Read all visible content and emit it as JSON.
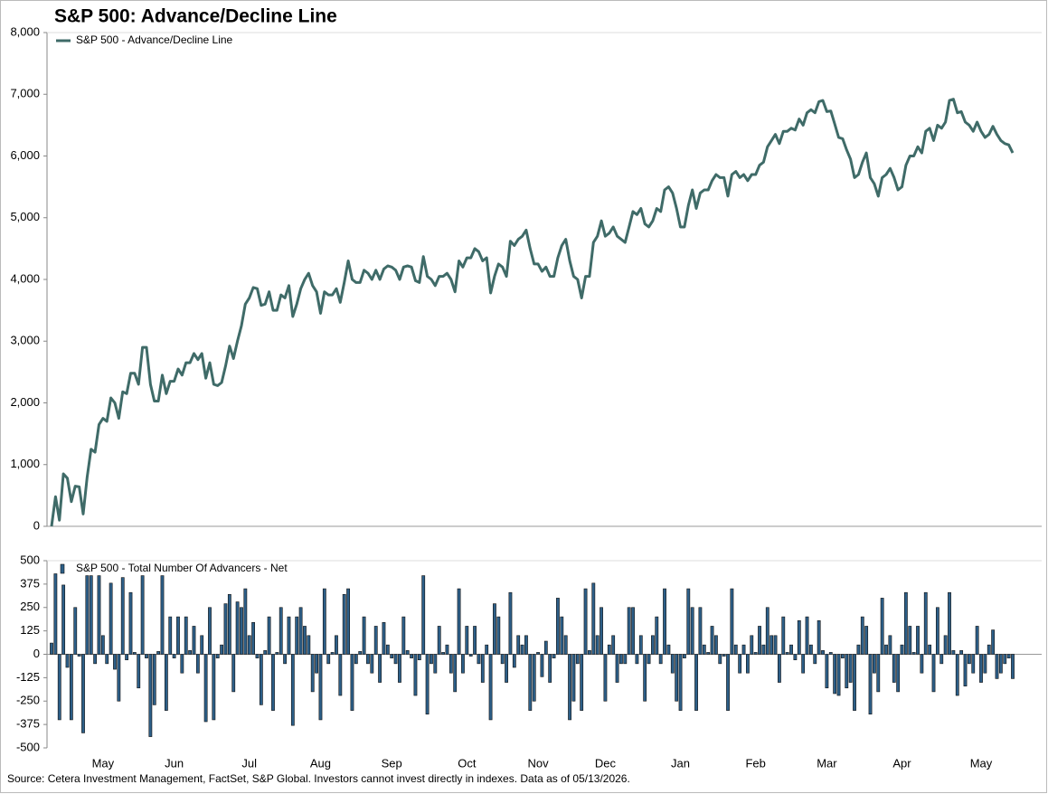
{
  "title": "S&P 500: Advance/Decline Line",
  "source": "Source: Cetera Investment Management, FactSet, S&P Global. Investors cannot invest directly in indexes. Data as of 05/13/2026.",
  "chart_data": [
    {
      "type": "line",
      "series": [
        {
          "name": "S&P 500 - Advance/Decline Line",
          "color": "#3f6b68",
          "values": [
            0,
            480,
            100,
            850,
            780,
            400,
            650,
            640,
            200,
            800,
            1250,
            1200,
            1650,
            1750,
            1700,
            2080,
            2000,
            1750,
            2180,
            2150,
            2480,
            2480,
            2300,
            2900,
            2900,
            2300,
            2030,
            2030,
            2450,
            2150,
            2350,
            2350,
            2550,
            2450,
            2650,
            2650,
            2800,
            2700,
            2800,
            2400,
            2650,
            2300,
            2280,
            2330,
            2600,
            2920,
            2720,
            3000,
            3250,
            3600,
            3700,
            3870,
            3850,
            3580,
            3600,
            3800,
            3500,
            3500,
            3750,
            3700,
            3900,
            3400,
            3600,
            3850,
            4000,
            4100,
            3900,
            3800,
            3450,
            3800,
            3750,
            3750,
            3850,
            3630,
            3950,
            4300,
            4000,
            3950,
            3950,
            4150,
            4100,
            4000,
            4150,
            4000,
            4170,
            4220,
            4200,
            4150,
            4000,
            4200,
            4220,
            4200,
            3980,
            3950,
            4370,
            4050,
            4000,
            3900,
            4050,
            4050,
            4100,
            4000,
            3800,
            4300,
            4200,
            4350,
            4350,
            4500,
            4450,
            4300,
            4350,
            3780,
            4050,
            4250,
            4200,
            4050,
            4620,
            4550,
            4650,
            4700,
            4800,
            4500,
            4250,
            4250,
            4130,
            4200,
            4050,
            4050,
            4350,
            4550,
            4650,
            4300,
            4050,
            4000,
            3700,
            4050,
            4050,
            4600,
            4700,
            4950,
            4700,
            4750,
            4850,
            4700,
            4650,
            4600,
            4850,
            5100,
            5050,
            5150,
            4900,
            4850,
            4950,
            5150,
            5100,
            5450,
            5500,
            5400,
            5150,
            4850,
            4850,
            5200,
            5450,
            5150,
            5400,
            5450,
            5450,
            5600,
            5700,
            5650,
            5650,
            5350,
            5700,
            5750,
            5650,
            5700,
            5600,
            5700,
            5700,
            5850,
            5900,
            6150,
            6250,
            6350,
            6200,
            6400,
            6400,
            6450,
            6420,
            6600,
            6500,
            6700,
            6750,
            6700,
            6880,
            6900,
            6720,
            6730,
            6520,
            6300,
            6280,
            6100,
            5950,
            5650,
            5700,
            5900,
            6050,
            5650,
            5550,
            5350,
            5650,
            5700,
            5800,
            5650,
            5450,
            5500,
            5850,
            6000,
            6000,
            6150,
            6050,
            6400,
            6450,
            6250,
            6500,
            6450,
            6550,
            6900,
            6920,
            6700,
            6720,
            6550,
            6500,
            6400,
            6550,
            6400,
            6300,
            6350,
            6480,
            6350,
            6250,
            6200,
            6180,
            6050
          ]
        }
      ],
      "ylim": [
        0,
        8000
      ],
      "yticks": [
        0,
        {
          "value": 1000,
          "label": "1,000"
        },
        {
          "value": 2000,
          "label": "2,000"
        },
        {
          "value": 3000,
          "label": "3,000"
        },
        {
          "value": 4000,
          "label": "4,000"
        },
        {
          "value": 5000,
          "label": "5,000"
        },
        {
          "value": 6000,
          "label": "6,000"
        },
        {
          "value": 7000,
          "label": "7,000"
        },
        {
          "value": 8000,
          "label": "8,000"
        }
      ]
    },
    {
      "type": "bar",
      "categories": [
        null,
        null,
        null,
        null,
        null,
        null,
        null,
        null,
        null,
        null,
        null,
        null,
        null,
        "May",
        null,
        null,
        null,
        null,
        null,
        null,
        null,
        null,
        null,
        null,
        null,
        null,
        null,
        null,
        null,
        null,
        null,
        "Jun",
        null,
        null,
        null,
        null,
        null,
        null,
        null,
        null,
        null,
        null,
        null,
        null,
        null,
        null,
        null,
        null,
        null,
        null,
        "Jul",
        null,
        null,
        null,
        null,
        null,
        null,
        null,
        null,
        null,
        null,
        null,
        null,
        null,
        null,
        null,
        null,
        null,
        "Aug",
        null,
        null,
        null,
        null,
        null,
        null,
        null,
        null,
        null,
        null,
        null,
        null,
        null,
        null,
        null,
        null,
        null,
        "Sep",
        null,
        null,
        null,
        null,
        null,
        null,
        null,
        null,
        null,
        null,
        null,
        null,
        null,
        null,
        null,
        null,
        null,
        null,
        "Oct",
        null,
        null,
        null,
        null,
        null,
        null,
        null,
        null,
        null,
        null,
        null,
        null,
        null,
        null,
        null,
        null,
        null,
        "Nov",
        null,
        null,
        null,
        null,
        null,
        null,
        null,
        null,
        null,
        null,
        null,
        null,
        null,
        null,
        null,
        null,
        "Dec",
        null,
        null,
        null,
        null,
        null,
        null,
        null,
        null,
        null,
        null,
        null,
        null,
        null,
        null,
        null,
        null,
        null,
        null,
        "Jan",
        null,
        null,
        null,
        null,
        null,
        null,
        null,
        null,
        null,
        null,
        null,
        null,
        null,
        null,
        null,
        null,
        null,
        null,
        "Feb",
        null,
        null,
        null,
        null,
        null,
        null,
        null,
        null,
        null,
        null,
        null,
        null,
        null,
        null,
        null,
        null,
        null,
        "Mar",
        null,
        null,
        null,
        null,
        null,
        null,
        null,
        null,
        null,
        null,
        null,
        null,
        null,
        null,
        null,
        null,
        null,
        null,
        "Apr",
        null,
        null,
        null,
        null,
        null,
        null,
        null,
        null,
        null,
        null,
        null,
        null,
        null,
        null,
        null,
        null,
        null,
        null,
        null,
        "May",
        null,
        null,
        null,
        null,
        null,
        null,
        null,
        null
      ],
      "series": [
        {
          "name": "S&P 500 - Total Number Of Advancers - Net",
          "color": "#2d5f88",
          "values": [
            60,
            430,
            -350,
            370,
            -70,
            -350,
            250,
            -10,
            -420,
            420,
            420,
            -50,
            420,
            100,
            -50,
            380,
            -80,
            -250,
            410,
            -30,
            330,
            10,
            -180,
            420,
            -20,
            -440,
            -270,
            15,
            420,
            -300,
            200,
            -20,
            200,
            -100,
            200,
            20,
            150,
            -100,
            100,
            -360,
            250,
            -350,
            -20,
            50,
            270,
            320,
            -200,
            280,
            250,
            350,
            100,
            170,
            -20,
            -270,
            20,
            200,
            -300,
            10,
            250,
            -50,
            200,
            -380,
            200,
            250,
            150,
            100,
            -200,
            -100,
            -350,
            350,
            -50,
            10,
            100,
            -220,
            320,
            350,
            -300,
            -50,
            15,
            200,
            -50,
            -100,
            150,
            -150,
            170,
            50,
            -20,
            -50,
            -150,
            200,
            20,
            -20,
            -220,
            -30,
            420,
            -320,
            -50,
            -100,
            150,
            10,
            50,
            -100,
            -200,
            350,
            -100,
            150,
            -10,
            150,
            -50,
            -150,
            50,
            -350,
            270,
            200,
            -50,
            -150,
            330,
            -70,
            100,
            50,
            100,
            -300,
            -250,
            10,
            -120,
            70,
            -150,
            -20,
            300,
            200,
            100,
            -350,
            -250,
            -50,
            -300,
            350,
            20,
            380,
            100,
            250,
            -250,
            50,
            100,
            -150,
            -50,
            -50,
            250,
            250,
            -50,
            100,
            -250,
            -50,
            100,
            200,
            -50,
            350,
            50,
            -100,
            -250,
            -300,
            -20,
            350,
            250,
            -300,
            250,
            50,
            10,
            150,
            100,
            -50,
            -10,
            -300,
            350,
            50,
            -100,
            50,
            -100,
            100,
            10,
            150,
            50,
            250,
            100,
            100,
            -150,
            200,
            10,
            50,
            -30,
            180,
            -100,
            200,
            50,
            -50,
            180,
            20,
            -180,
            10,
            -210,
            -220,
            -20,
            -180,
            -150,
            -300,
            50,
            200,
            150,
            -320,
            -100,
            -200,
            300,
            50,
            100,
            -150,
            -200,
            50,
            330,
            150,
            10,
            150,
            -100,
            330,
            50,
            -200,
            250,
            -50,
            100,
            330,
            20,
            -220,
            20,
            -170,
            -50,
            -100,
            150,
            -150,
            -100,
            50,
            130,
            -130,
            -100,
            -50,
            -20,
            -130
          ]
        }
      ],
      "ylim": [
        -500,
        500
      ],
      "yticks": [
        500,
        375,
        250,
        125,
        0,
        -125,
        -250,
        -375,
        -500
      ]
    }
  ]
}
